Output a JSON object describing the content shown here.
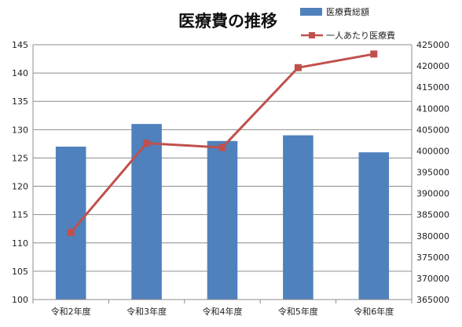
{
  "chart_data": {
    "type": "bar+line",
    "title": "医療費の推移",
    "categories": [
      "令和2年度",
      "令和3年度",
      "令和4年度",
      "令和5年度",
      "令和6年度"
    ],
    "series": [
      {
        "name": "医療費総額",
        "type": "bar",
        "axis": "left",
        "color": "#4f81bd",
        "values": [
          127,
          131,
          128,
          129,
          126
        ]
      },
      {
        "name": "一人あたり医療費",
        "type": "line",
        "axis": "right",
        "color": "#c0504d",
        "marker": "square",
        "values": [
          380800,
          401800,
          400800,
          419600,
          422800
        ]
      }
    ],
    "y_left": {
      "min": 100,
      "max": 145,
      "step": 5
    },
    "y_right": {
      "min": 365000,
      "max": 425000,
      "step": 5000
    },
    "grid": true,
    "legend_position": "top-right"
  }
}
